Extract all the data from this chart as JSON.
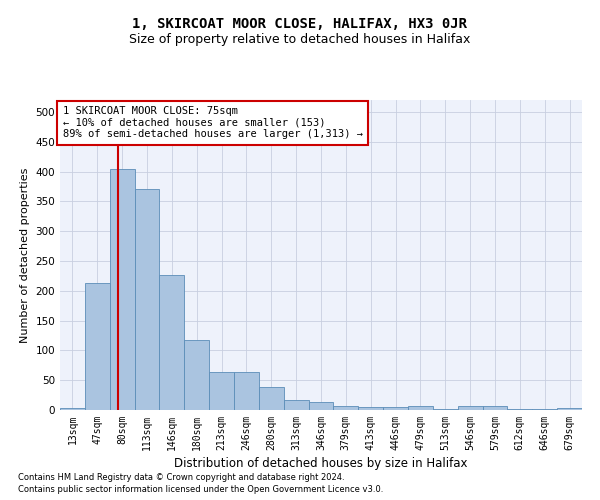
{
  "title": "1, SKIRCOAT MOOR CLOSE, HALIFAX, HX3 0JR",
  "subtitle": "Size of property relative to detached houses in Halifax",
  "xlabel": "Distribution of detached houses by size in Halifax",
  "ylabel": "Number of detached properties",
  "footnote1": "Contains HM Land Registry data © Crown copyright and database right 2024.",
  "footnote2": "Contains public sector information licensed under the Open Government Licence v3.0.",
  "bar_labels": [
    "13sqm",
    "47sqm",
    "80sqm",
    "113sqm",
    "146sqm",
    "180sqm",
    "213sqm",
    "246sqm",
    "280sqm",
    "313sqm",
    "346sqm",
    "379sqm",
    "413sqm",
    "446sqm",
    "479sqm",
    "513sqm",
    "546sqm",
    "579sqm",
    "612sqm",
    "646sqm",
    "679sqm"
  ],
  "bar_values": [
    4,
    213,
    405,
    370,
    227,
    118,
    64,
    64,
    38,
    17,
    13,
    7,
    5,
    5,
    6,
    1,
    7,
    7,
    2,
    1,
    3
  ],
  "bar_color": "#aac4e0",
  "bar_edge_color": "#5b8db8",
  "ylim": [
    0,
    520
  ],
  "yticks": [
    0,
    50,
    100,
    150,
    200,
    250,
    300,
    350,
    400,
    450,
    500
  ],
  "vline_color": "#cc0000",
  "annotation_text": "1 SKIRCOAT MOOR CLOSE: 75sqm\n← 10% of detached houses are smaller (153)\n89% of semi-detached houses are larger (1,313) →",
  "annotation_box_color": "#ffffff",
  "annotation_box_edge": "#cc0000",
  "bg_color": "#eef2fb",
  "grid_color": "#c8cfe0",
  "title_fontsize": 10,
  "subtitle_fontsize": 9,
  "tick_fontsize": 7,
  "ylabel_fontsize": 8,
  "xlabel_fontsize": 8.5,
  "footnote_fontsize": 6,
  "annot_fontsize": 7.5
}
